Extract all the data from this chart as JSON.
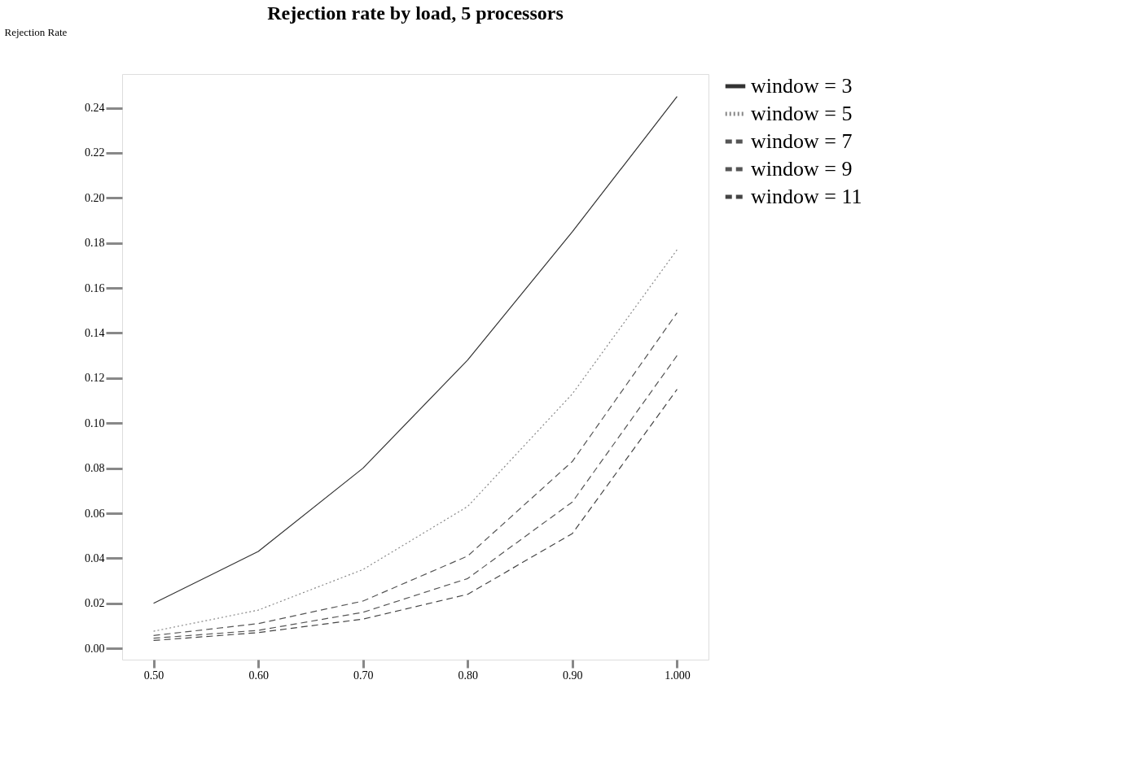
{
  "chart_data": {
    "type": "line",
    "title": "Rejection rate by load, 5 processors",
    "ylabel": "Rejection Rate",
    "x": [
      0.5,
      0.6,
      0.7,
      0.8,
      0.9,
      1.0
    ],
    "series": [
      {
        "name": "window = 3",
        "color": "#333333",
        "line_style": "solid",
        "values": [
          0.02,
          0.043,
          0.08,
          0.128,
          0.185,
          0.245
        ]
      },
      {
        "name": "window = 5",
        "color": "#888888",
        "line_style": "dotted",
        "values": [
          0.0076,
          0.017,
          0.035,
          0.063,
          0.113,
          0.177
        ]
      },
      {
        "name": "window = 7",
        "color": "#555555",
        "line_style": "dashed",
        "values": [
          0.0057,
          0.011,
          0.021,
          0.041,
          0.083,
          0.149
        ]
      },
      {
        "name": "window = 9",
        "color": "#555555",
        "line_style": "dashed",
        "values": [
          0.0045,
          0.008,
          0.016,
          0.031,
          0.065,
          0.13
        ]
      },
      {
        "name": "window = 11",
        "color": "#444444",
        "line_style": "dashed",
        "values": [
          0.0035,
          0.007,
          0.013,
          0.024,
          0.051,
          0.115
        ]
      }
    ],
    "xlim": [
      0.47,
      1.03
    ],
    "xticks": [
      {
        "value": 0.5,
        "label": "0.50"
      },
      {
        "value": 0.6,
        "label": "0.60"
      },
      {
        "value": 0.7,
        "label": "0.70"
      },
      {
        "value": 0.8,
        "label": "0.80"
      },
      {
        "value": 0.9,
        "label": "0.90"
      },
      {
        "value": 1.0,
        "label": "1.000"
      }
    ],
    "ylim": [
      -0.005,
      0.255
    ],
    "yticks": [
      {
        "value": 0,
        "label": "0.00"
      },
      {
        "value": 0.02,
        "label": "0.02"
      },
      {
        "value": 0.04,
        "label": "0.04"
      },
      {
        "value": 0.06,
        "label": "0.06"
      },
      {
        "value": 0.08,
        "label": "0.08"
      },
      {
        "value": 0.1,
        "label": "0.10"
      },
      {
        "value": 0.12,
        "label": "0.12"
      },
      {
        "value": 0.14,
        "label": "0.14"
      },
      {
        "value": 0.16,
        "label": "0.16"
      },
      {
        "value": 0.18,
        "label": "0.18"
      },
      {
        "value": 0.2,
        "label": "0.20"
      },
      {
        "value": 0.22,
        "label": "0.22"
      },
      {
        "value": 0.24,
        "label": "0.24"
      }
    ],
    "grid": false,
    "legend": "top right",
    "marker": "none"
  }
}
